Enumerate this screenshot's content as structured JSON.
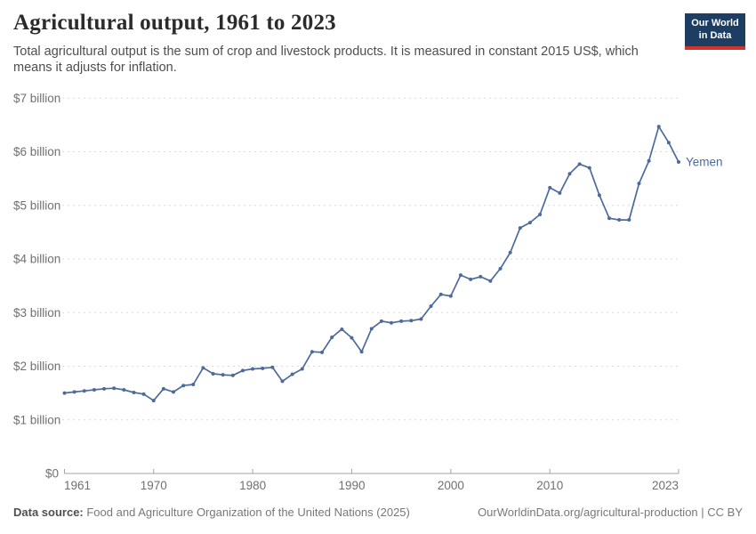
{
  "header": {
    "title": "Agricultural output, 1961 to 2023",
    "subtitle": "Total agricultural output is the sum of crop and livestock products. It is measured in constant 2015 US$, which means it adjusts for inflation."
  },
  "logo": {
    "line1": "Our World",
    "line2": "in Data",
    "bg_color": "#1d3d63",
    "accent_color": "#d0342c"
  },
  "chart_data": {
    "type": "line",
    "title": "Agricultural output, 1961 to 2023",
    "entity": "Yemen",
    "ylabel": "",
    "xlabel": "",
    "y_unit": "constant 2015 US$ (billions)",
    "ylim": [
      0,
      7
    ],
    "grid": "horizontal dashed",
    "legend_position": "end-of-line label",
    "line_color": "#4c6a9c",
    "x_ticks": [
      1961,
      1970,
      1980,
      1990,
      2000,
      2010,
      2023
    ],
    "y_ticks": [
      0,
      1,
      2,
      3,
      4,
      5,
      6,
      7
    ],
    "y_tick_labels": [
      "$0",
      "$1 billion",
      "$2 billion",
      "$3 billion",
      "$4 billion",
      "$5 billion",
      "$6 billion",
      "$7 billion"
    ],
    "x": [
      1961,
      1962,
      1963,
      1964,
      1965,
      1966,
      1967,
      1968,
      1969,
      1970,
      1971,
      1972,
      1973,
      1974,
      1975,
      1976,
      1977,
      1978,
      1979,
      1980,
      1981,
      1982,
      1983,
      1984,
      1985,
      1986,
      1987,
      1988,
      1989,
      1990,
      1991,
      1992,
      1993,
      1994,
      1995,
      1996,
      1997,
      1998,
      1999,
      2000,
      2001,
      2002,
      2003,
      2004,
      2005,
      2006,
      2007,
      2008,
      2009,
      2010,
      2011,
      2012,
      2013,
      2014,
      2015,
      2016,
      2017,
      2018,
      2019,
      2020,
      2021,
      2022,
      2023
    ],
    "values_billion_usd": [
      1.5,
      1.52,
      1.54,
      1.56,
      1.58,
      1.59,
      1.56,
      1.51,
      1.48,
      1.36,
      1.58,
      1.52,
      1.64,
      1.66,
      1.97,
      1.86,
      1.84,
      1.83,
      1.92,
      1.95,
      1.96,
      1.98,
      1.72,
      1.85,
      1.95,
      2.27,
      2.26,
      2.54,
      2.69,
      2.53,
      2.27,
      2.7,
      2.84,
      2.81,
      2.84,
      2.85,
      2.88,
      3.12,
      3.34,
      3.31,
      3.7,
      3.62,
      3.67,
      3.59,
      3.82,
      4.12,
      4.58,
      4.68,
      4.83,
      5.33,
      5.23,
      5.59,
      5.77,
      5.7,
      5.19,
      4.76,
      4.73,
      4.73,
      5.41,
      5.83,
      6.47,
      6.17,
      5.81
    ]
  },
  "footer": {
    "datasource_label": "Data source:",
    "datasource_text": " Food and Agriculture Organization of the United Nations (2025)",
    "credit": "OurWorldinData.org/agricultural-production | CC BY"
  }
}
